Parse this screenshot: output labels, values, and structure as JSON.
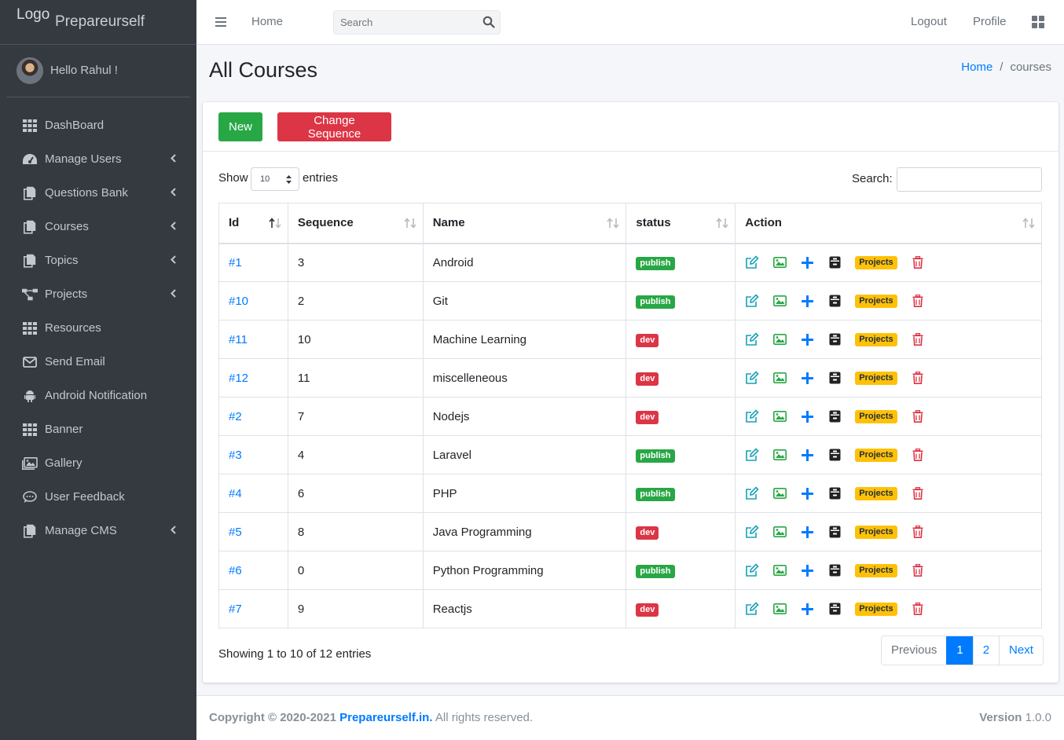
{
  "brand": {
    "logo": "Logo",
    "name": "Prepareurself"
  },
  "user": {
    "greeting": "Hello Rahul !"
  },
  "sidebar": {
    "items": [
      {
        "label": "DashBoard",
        "icon": "grid-icon",
        "has_sub": false
      },
      {
        "label": "Manage Users",
        "icon": "tachometer-icon",
        "has_sub": true
      },
      {
        "label": "Questions Bank",
        "icon": "copy-icon",
        "has_sub": true
      },
      {
        "label": "Courses",
        "icon": "copy-icon",
        "has_sub": true
      },
      {
        "label": "Topics",
        "icon": "copy-icon",
        "has_sub": true
      },
      {
        "label": "Projects",
        "icon": "project-diagram-icon",
        "has_sub": true
      },
      {
        "label": "Resources",
        "icon": "grid-icon",
        "has_sub": false
      },
      {
        "label": "Send Email",
        "icon": "envelope-icon",
        "has_sub": false
      },
      {
        "label": "Android Notification",
        "icon": "android-icon",
        "has_sub": false
      },
      {
        "label": "Banner",
        "icon": "grid-icon",
        "has_sub": false
      },
      {
        "label": "Gallery",
        "icon": "images-icon",
        "has_sub": false
      },
      {
        "label": "User Feedback",
        "icon": "comment-icon",
        "has_sub": false
      },
      {
        "label": "Manage CMS",
        "icon": "copy-icon",
        "has_sub": true
      }
    ]
  },
  "topbar": {
    "home": "Home",
    "search_placeholder": "Search",
    "logout": "Logout",
    "profile": "Profile"
  },
  "header": {
    "title": "All Courses",
    "breadcrumb_home": "Home",
    "breadcrumb_sep": "/",
    "breadcrumb_current": "courses"
  },
  "toolbar": {
    "new_label": "New",
    "change_sequence_label": "Change Sequence"
  },
  "table_controls": {
    "show": "Show",
    "length": "10",
    "entries": "entries",
    "search_label": "Search:"
  },
  "table": {
    "columns": [
      "Id",
      "Sequence",
      "Name",
      "status",
      "Action"
    ],
    "projects_label": "Projects",
    "rows": [
      {
        "id": "#1",
        "sequence": "3",
        "name": "Android",
        "status": "publish"
      },
      {
        "id": "#10",
        "sequence": "2",
        "name": "Git",
        "status": "publish"
      },
      {
        "id": "#11",
        "sequence": "10",
        "name": "Machine Learning",
        "status": "dev"
      },
      {
        "id": "#12",
        "sequence": "11",
        "name": "miscelleneous",
        "status": "dev"
      },
      {
        "id": "#2",
        "sequence": "7",
        "name": "Nodejs",
        "status": "dev"
      },
      {
        "id": "#3",
        "sequence": "4",
        "name": "Laravel",
        "status": "publish"
      },
      {
        "id": "#4",
        "sequence": "6",
        "name": "PHP",
        "status": "publish"
      },
      {
        "id": "#5",
        "sequence": "8",
        "name": "Java Programming",
        "status": "dev"
      },
      {
        "id": "#6",
        "sequence": "0",
        "name": "Python Programming",
        "status": "publish"
      },
      {
        "id": "#7",
        "sequence": "9",
        "name": "Reactjs",
        "status": "dev"
      }
    ]
  },
  "pagination": {
    "info": "Showing 1 to 10 of 12 entries",
    "previous": "Previous",
    "pages": [
      "1",
      "2"
    ],
    "active": "1",
    "next": "Next"
  },
  "footer": {
    "copyright": "Copyright © 2020-2021",
    "brand": "Prepareurself.in.",
    "rights": "All rights reserved.",
    "version_label": "Version",
    "version": "1.0.0"
  },
  "colors": {
    "sidebar_bg": "#343a40",
    "primary": "#007bff",
    "success": "#28a745",
    "danger": "#dc3545",
    "warning": "#ffc107",
    "teal": "#17a2b8"
  }
}
